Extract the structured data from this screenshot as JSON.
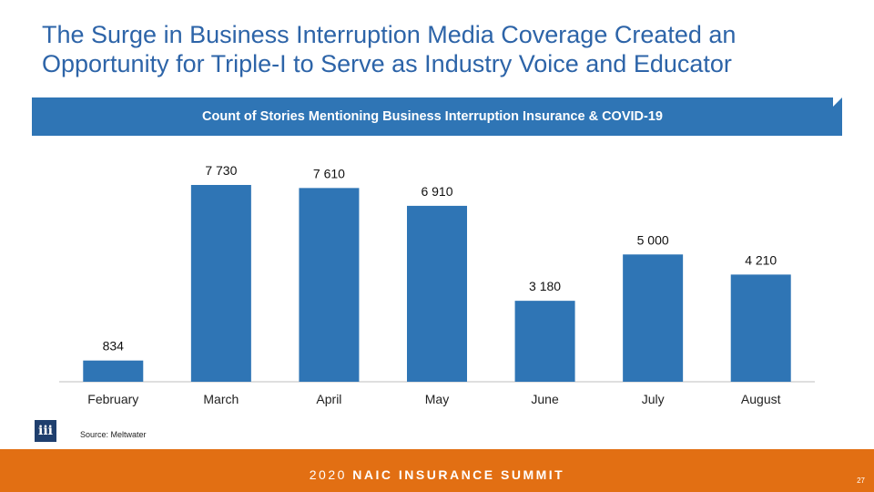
{
  "slide": {
    "title_line1": "The Surge in Business Interruption Media Coverage Created an",
    "title_line2": "Opportunity for Triple-I to Serve as Industry Voice and Educator",
    "source": "Source: Meltwater",
    "logo_text": "iii",
    "footer_year": "2020",
    "footer_event": "NAIC INSURANCE SUMMIT",
    "page_number": "27"
  },
  "colors": {
    "title": "#2d64a8",
    "banner": "#2f75b5",
    "bar": "#2f75b5",
    "footer": "#e26f13"
  },
  "chart_data": {
    "type": "bar",
    "title": "Count of Stories Mentioning Business Interruption Insurance & COVID-19",
    "categories": [
      "February",
      "March",
      "April",
      "May",
      "June",
      "July",
      "August"
    ],
    "values": [
      834,
      7730,
      7610,
      6910,
      3180,
      5000,
      4210
    ],
    "value_labels": [
      "834",
      "7 730",
      "7 610",
      "6 910",
      "3 180",
      "5 000",
      "4 210"
    ],
    "xlabel": "",
    "ylabel": "",
    "ylim": [
      0,
      8000
    ]
  }
}
